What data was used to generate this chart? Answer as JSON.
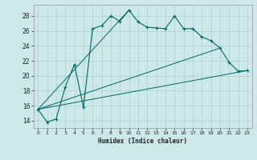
{
  "xlabel": "Humidex (Indice chaleur)",
  "bg_color": "#cce8e8",
  "grid_color": "#aacfcf",
  "line_color": "#006868",
  "xlim": [
    -0.5,
    23.5
  ],
  "ylim": [
    13.0,
    29.5
  ],
  "yticks": [
    14,
    16,
    18,
    20,
    22,
    24,
    26,
    28
  ],
  "xticks": [
    0,
    1,
    2,
    3,
    4,
    5,
    6,
    7,
    8,
    9,
    10,
    11,
    12,
    13,
    14,
    15,
    16,
    17,
    18,
    19,
    20,
    21,
    22,
    23
  ],
  "main_x": [
    0,
    1,
    2,
    3,
    4,
    5,
    6,
    7,
    8,
    9,
    10,
    11,
    12,
    13,
    14,
    15,
    16,
    17,
    18,
    19,
    20,
    21,
    22,
    23
  ],
  "main_y": [
    15.5,
    13.8,
    14.2,
    18.5,
    21.5,
    15.8,
    26.3,
    26.7,
    28.0,
    27.3,
    28.8,
    27.2,
    26.5,
    26.4,
    26.3,
    28.0,
    26.3,
    26.3,
    25.2,
    24.7,
    23.7,
    21.8,
    20.6,
    20.7
  ],
  "fan_lines": [
    {
      "x": [
        0,
        10
      ],
      "y": [
        15.5,
        28.8
      ]
    },
    {
      "x": [
        0,
        20
      ],
      "y": [
        15.5,
        23.7
      ]
    },
    {
      "x": [
        0,
        23
      ],
      "y": [
        15.5,
        20.7
      ]
    }
  ]
}
